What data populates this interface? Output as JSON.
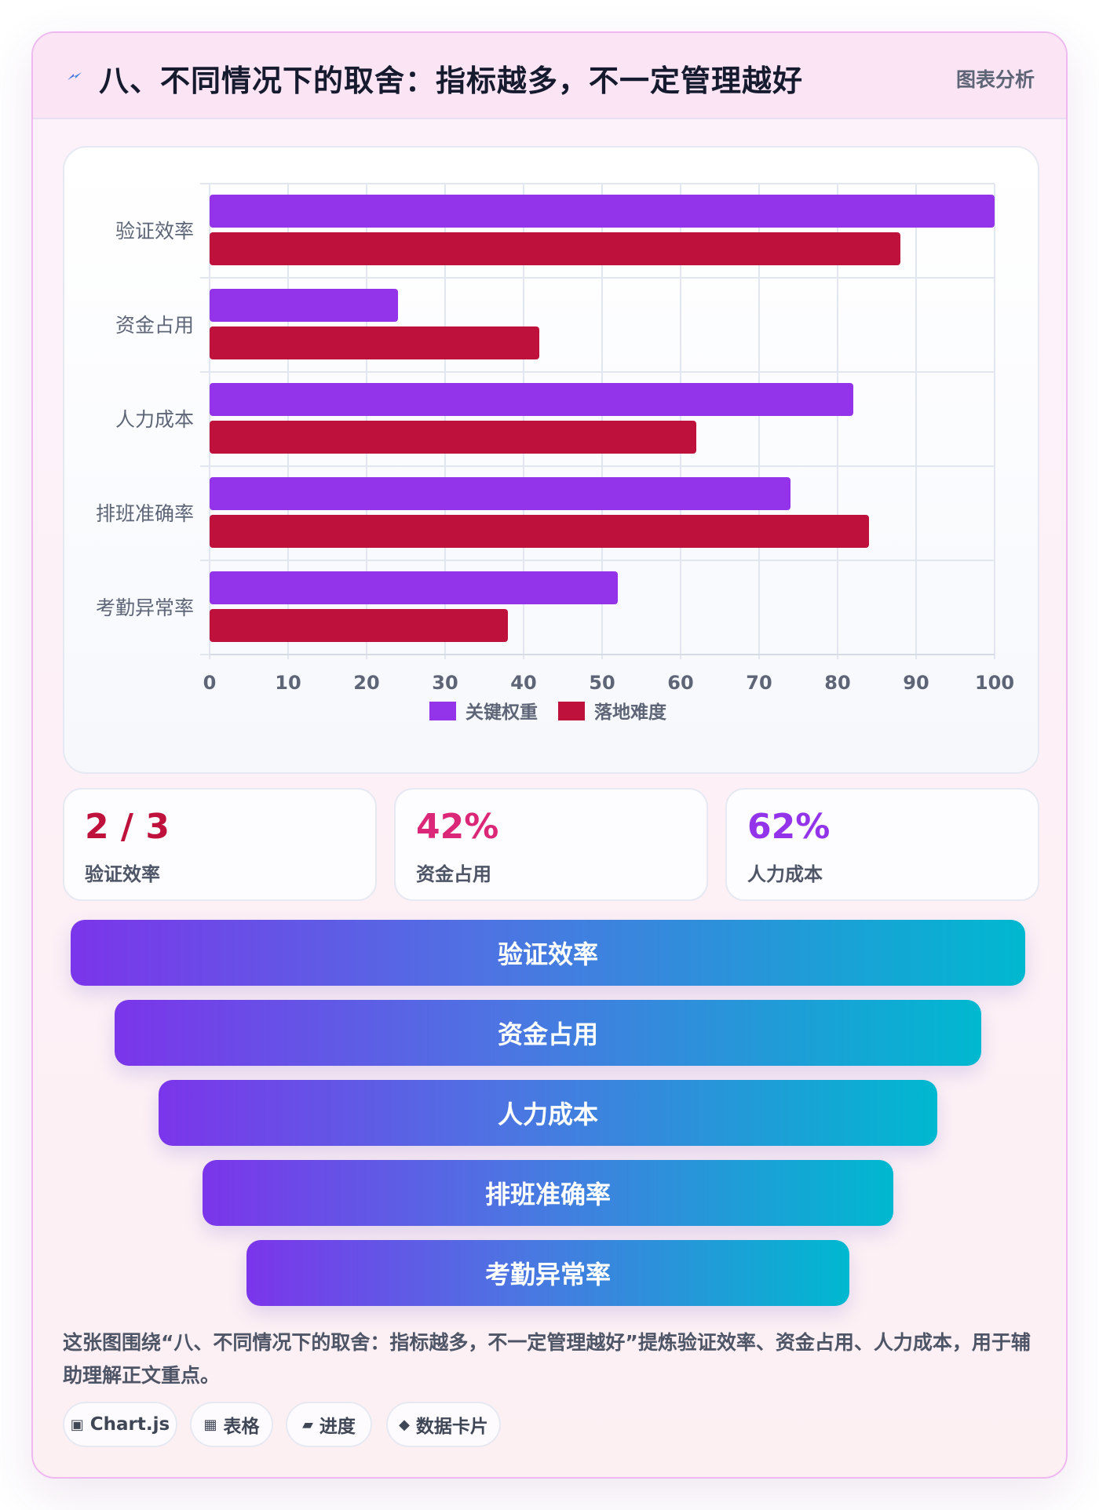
{
  "header": {
    "icon": "lightning-icon",
    "title": "八、不同情况下的取舍：指标越多，不一定管理越好",
    "tag": "图表分析"
  },
  "chart_data": {
    "type": "bar",
    "orientation": "horizontal",
    "categories": [
      "验证效率",
      "资金占用",
      "人力成本",
      "排班准确率",
      "考勤异常率"
    ],
    "series": [
      {
        "name": "关键权重",
        "values": [
          100,
          24,
          82,
          74,
          52
        ],
        "color": "#9333ea"
      },
      {
        "name": "落地难度",
        "values": [
          88,
          42,
          62,
          84,
          38
        ],
        "color": "#be123c"
      }
    ],
    "xlim": [
      0,
      100
    ],
    "xticks": [
      0,
      10,
      20,
      30,
      40,
      50,
      60,
      70,
      80,
      90,
      100
    ],
    "grid": true,
    "legend": "bottom"
  },
  "stats": [
    {
      "value": "2 / 3",
      "label": "验证效率",
      "color": "#be123c"
    },
    {
      "value": "42%",
      "label": "资金占用",
      "color": "#db2777"
    },
    {
      "value": "62%",
      "label": "人力成本",
      "color": "#9333ea"
    }
  ],
  "funnel": [
    "验证效率",
    "资金占用",
    "人力成本",
    "排班准确率",
    "考勤异常率"
  ],
  "description": "这张图围绕“八、不同情况下的取舍：指标越多，不一定管理越好”提炼验证效率、资金占用、人力成本，用于辅助理解正文重点。",
  "pills": [
    {
      "icon": "▣",
      "icon_name": "chart-icon",
      "label": "Chart.js"
    },
    {
      "icon": "▦",
      "icon_name": "table-icon",
      "label": "表格"
    },
    {
      "icon": "▰",
      "icon_name": "progress-icon",
      "label": "进度"
    },
    {
      "icon": "◆",
      "icon_name": "data-card-icon",
      "label": "数据卡片"
    }
  ]
}
